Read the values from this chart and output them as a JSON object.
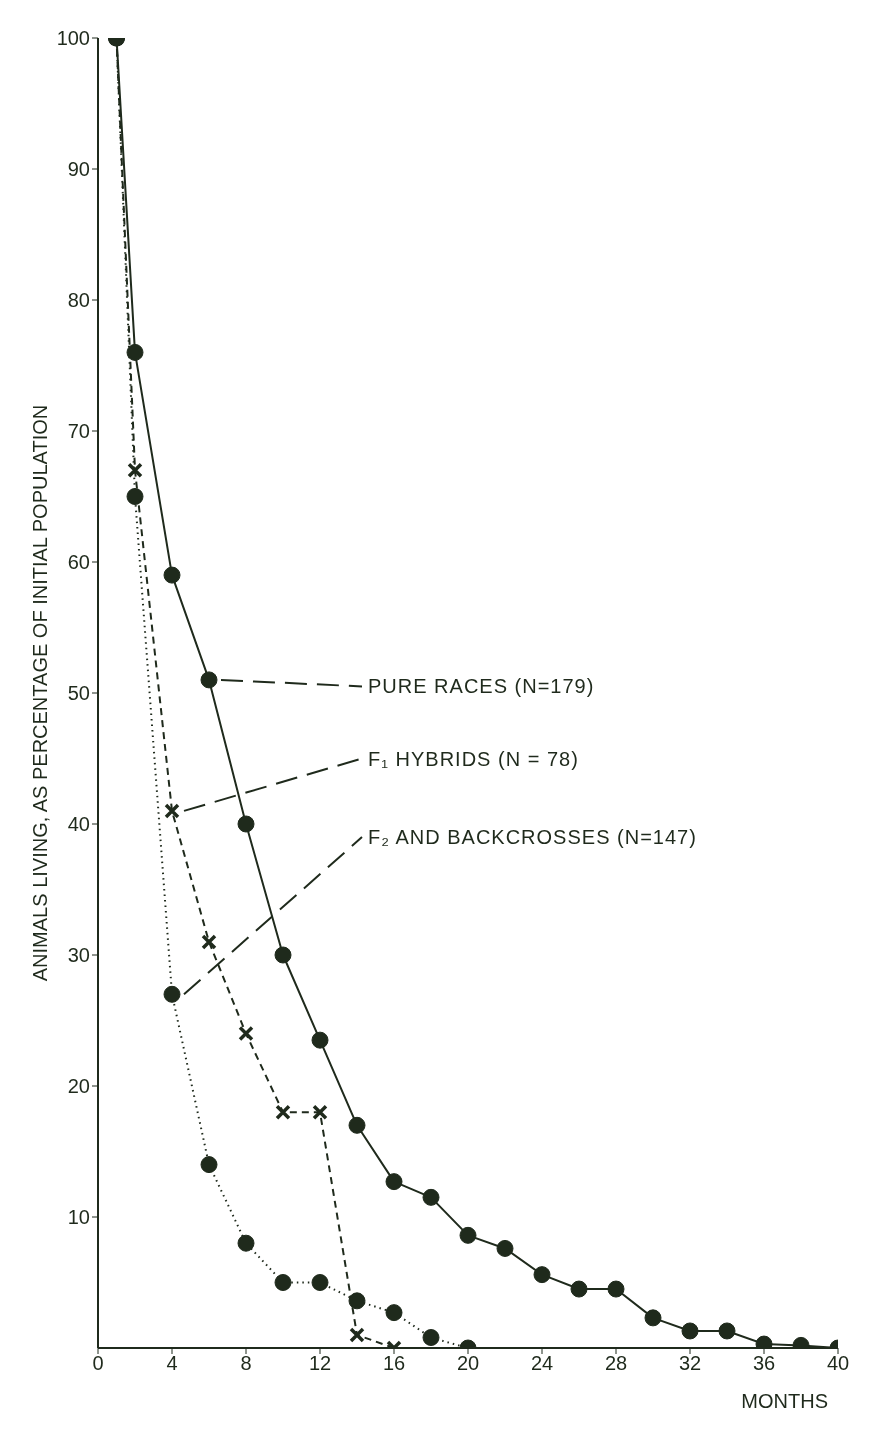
{
  "chart_data": {
    "type": "line",
    "xlabel": "MONTHS",
    "ylabel": "ANIMALS LIVING, AS PERCENTAGE OF INITIAL POPULATION",
    "xlim": [
      0,
      40
    ],
    "xticks": [
      0,
      4,
      8,
      12,
      16,
      20,
      24,
      28,
      32,
      36,
      40
    ],
    "ylim": [
      0,
      100
    ],
    "yticks": [
      10,
      20,
      30,
      40,
      50,
      60,
      70,
      80,
      90,
      100
    ],
    "grid": false,
    "series": [
      {
        "name": "PURE RACES (N=179)",
        "color": "#1f2a1c",
        "marker": "circle",
        "line_style": "solid",
        "x": [
          1,
          2,
          4,
          6,
          8,
          10,
          12,
          14,
          16,
          18,
          20,
          22,
          24,
          26,
          28,
          30,
          32,
          34,
          36,
          38,
          40
        ],
        "values": [
          100,
          76,
          59,
          51,
          40,
          30,
          23.5,
          17,
          12.7,
          11.5,
          8.6,
          7.6,
          5.6,
          4.5,
          4.5,
          2.3,
          1.3,
          1.3,
          0.3,
          0.2,
          0
        ]
      },
      {
        "name": "F₁ HYBRIDS (N = 78)",
        "color": "#1f2a1c",
        "marker": "cross",
        "line_style": "dashed",
        "x": [
          1,
          2,
          4,
          6,
          8,
          10,
          12,
          14,
          16
        ],
        "values": [
          100,
          67,
          41,
          31,
          24,
          18,
          18,
          1,
          0
        ]
      },
      {
        "name": "F₂ AND BACKCROSSES (N=147)",
        "color": "#1f2a1c",
        "marker": "circle",
        "line_style": "dotted",
        "x": [
          1,
          2,
          4,
          6,
          8,
          10,
          12,
          14,
          16,
          18,
          20
        ],
        "values": [
          100,
          65,
          27,
          14,
          8,
          5,
          5,
          3.6,
          2.7,
          0.8,
          0
        ]
      }
    ]
  }
}
